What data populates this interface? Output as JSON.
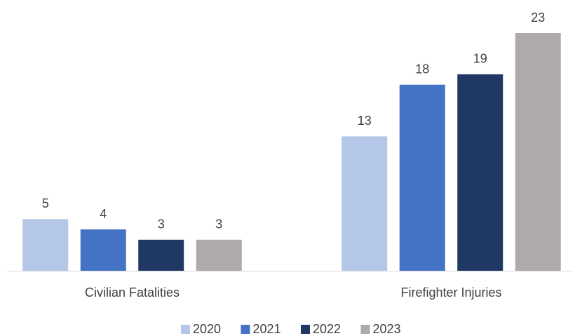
{
  "chart_data": {
    "type": "bar",
    "categories": [
      "Civilian Fatalities",
      "Firefighter Injuries"
    ],
    "series": [
      {
        "name": "2020",
        "color": "#b4c7e7",
        "values": [
          5,
          13
        ]
      },
      {
        "name": "2021",
        "color": "#4472c4",
        "values": [
          4,
          18
        ]
      },
      {
        "name": "2022",
        "color": "#1f3864",
        "values": [
          3,
          19
        ]
      },
      {
        "name": "2023",
        "color": "#aeaaaa",
        "values": [
          3,
          23
        ]
      }
    ],
    "legend": "bottom"
  }
}
